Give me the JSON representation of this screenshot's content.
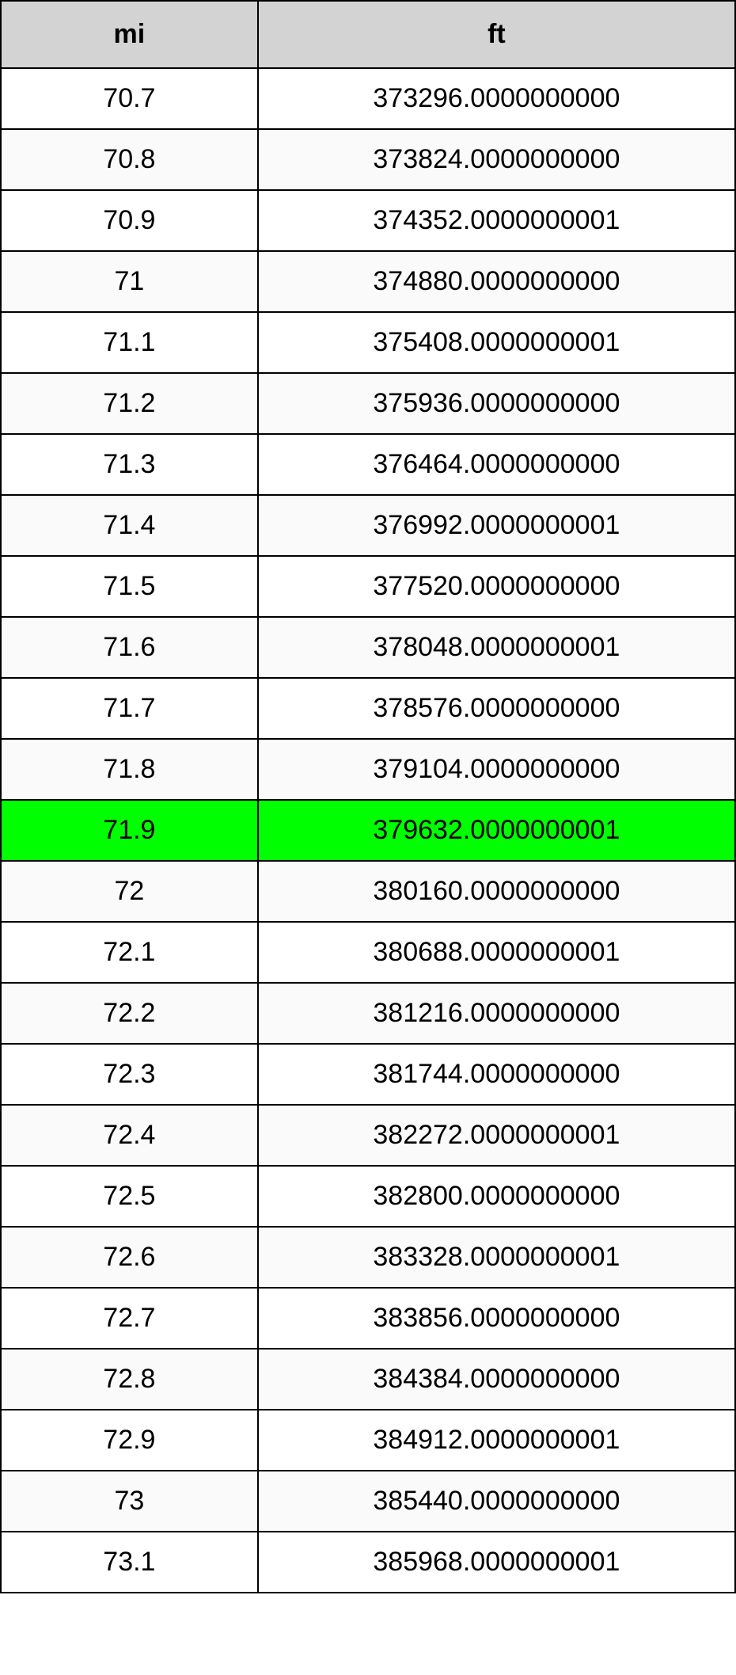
{
  "table": {
    "type": "table",
    "columns": [
      "mi",
      "ft"
    ],
    "column_widths": [
      "35%",
      "65%"
    ],
    "header_background_color": "#d3d3d3",
    "header_fontsize": 34,
    "header_font_weight": "bold",
    "cell_fontsize": 34,
    "border_color": "#000000",
    "border_width": 2,
    "odd_row_background": "#ffffff",
    "even_row_background": "#fafafa",
    "highlight_background": "#00ff00",
    "text_color": "#000000",
    "highlighted_row_index": 12,
    "rows": [
      {
        "mi": "70.7",
        "ft": "373296.0000000000",
        "highlighted": false
      },
      {
        "mi": "70.8",
        "ft": "373824.0000000000",
        "highlighted": false
      },
      {
        "mi": "70.9",
        "ft": "374352.0000000001",
        "highlighted": false
      },
      {
        "mi": "71",
        "ft": "374880.0000000000",
        "highlighted": false
      },
      {
        "mi": "71.1",
        "ft": "375408.0000000001",
        "highlighted": false
      },
      {
        "mi": "71.2",
        "ft": "375936.0000000000",
        "highlighted": false
      },
      {
        "mi": "71.3",
        "ft": "376464.0000000000",
        "highlighted": false
      },
      {
        "mi": "71.4",
        "ft": "376992.0000000001",
        "highlighted": false
      },
      {
        "mi": "71.5",
        "ft": "377520.0000000000",
        "highlighted": false
      },
      {
        "mi": "71.6",
        "ft": "378048.0000000001",
        "highlighted": false
      },
      {
        "mi": "71.7",
        "ft": "378576.0000000000",
        "highlighted": false
      },
      {
        "mi": "71.8",
        "ft": "379104.0000000000",
        "highlighted": false
      },
      {
        "mi": "71.9",
        "ft": "379632.0000000001",
        "highlighted": true
      },
      {
        "mi": "72",
        "ft": "380160.0000000000",
        "highlighted": false
      },
      {
        "mi": "72.1",
        "ft": "380688.0000000001",
        "highlighted": false
      },
      {
        "mi": "72.2",
        "ft": "381216.0000000000",
        "highlighted": false
      },
      {
        "mi": "72.3",
        "ft": "381744.0000000000",
        "highlighted": false
      },
      {
        "mi": "72.4",
        "ft": "382272.0000000001",
        "highlighted": false
      },
      {
        "mi": "72.5",
        "ft": "382800.0000000000",
        "highlighted": false
      },
      {
        "mi": "72.6",
        "ft": "383328.0000000001",
        "highlighted": false
      },
      {
        "mi": "72.7",
        "ft": "383856.0000000000",
        "highlighted": false
      },
      {
        "mi": "72.8",
        "ft": "384384.0000000000",
        "highlighted": false
      },
      {
        "mi": "72.9",
        "ft": "384912.0000000001",
        "highlighted": false
      },
      {
        "mi": "73",
        "ft": "385440.0000000000",
        "highlighted": false
      },
      {
        "mi": "73.1",
        "ft": "385968.0000000001",
        "highlighted": false
      }
    ]
  }
}
